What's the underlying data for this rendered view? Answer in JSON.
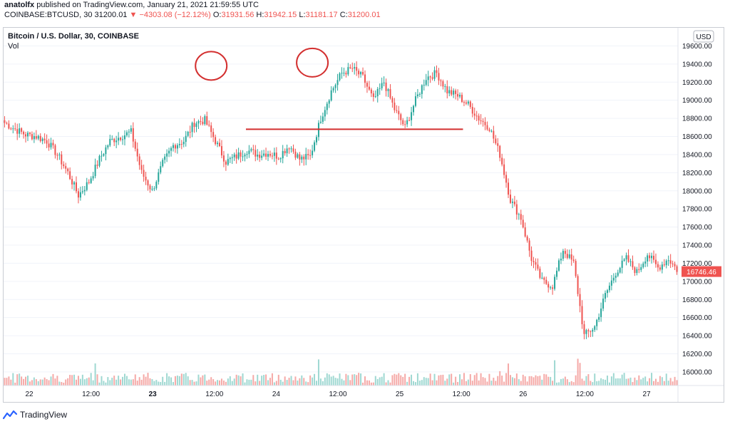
{
  "header": {
    "author": "anatolfx",
    "published": "published on TradingView.com, January 21, 2021 21:59:55 UTC",
    "symbol": "COINBASE:BTCUSD, 30",
    "last": "31200.01",
    "change_arrow": "▼",
    "change": "−4303.08 (−12.12%)",
    "o_label": "O:",
    "o_value": "31931.56",
    "h_label": "H:",
    "h_value": "31942.15",
    "l_label": "L:",
    "l_value": "31181.17",
    "c_label": "C:",
    "c_value": "31200.01"
  },
  "legend": {
    "title": "Bitcoin / U.S. Dollar, 30, COINBASE",
    "vol": "Vol"
  },
  "currency_badge": "USD",
  "price_badge": "16746.46",
  "footer": {
    "brand": "TradingView"
  },
  "colors": {
    "up": "#26a69a",
    "down": "#ef5350",
    "up_vol": "#9fd8d2",
    "down_vol": "#f5a9a7",
    "annotation": "#d32f2f"
  },
  "chart_data": {
    "type": "candlestick",
    "interval": "30",
    "ylim": [
      15850,
      19800
    ],
    "y_ticks": [
      16000,
      16200,
      16400,
      16600,
      16800,
      17000,
      17200,
      17400,
      17600,
      17800,
      18000,
      18200,
      18400,
      18600,
      18800,
      19000,
      19200,
      19400,
      19600
    ],
    "x_ticks": [
      "22",
      "12:00",
      "23",
      "12:00",
      "24",
      "12:00",
      "25",
      "12:00",
      "26",
      "12:00",
      "27"
    ],
    "x_tick_bold": [
      false,
      false,
      true,
      false,
      false,
      false,
      false,
      false,
      false,
      false,
      false
    ],
    "close_path": [
      18750,
      18680,
      18620,
      18600,
      18550,
      18400,
      18200,
      17950,
      18100,
      18350,
      18550,
      18600,
      18650,
      18200,
      18000,
      18300,
      18500,
      18550,
      18750,
      18780,
      18550,
      18320,
      18380,
      18450,
      18400,
      18420,
      18380,
      18500,
      18350,
      18380,
      18800,
      19100,
      19300,
      19350,
      19250,
      19000,
      19200,
      18900,
      18700,
      19000,
      19250,
      19300,
      19100,
      19050,
      18950,
      18800,
      18700,
      18400,
      17900,
      17700,
      17250,
      17000,
      16950,
      17350,
      17200,
      16400,
      16500,
      16850,
      17100,
      17250,
      17100,
      17300,
      17150,
      17250,
      17100
    ],
    "candles_per_point": 5,
    "annotations": {
      "circles": [
        {
          "x_index": 98,
          "price": 19380
        },
        {
          "x_index": 146,
          "price": 19415
        }
      ],
      "neckline": {
        "x_start_index": 115,
        "x_end_index": 218,
        "price": 18680
      }
    }
  }
}
